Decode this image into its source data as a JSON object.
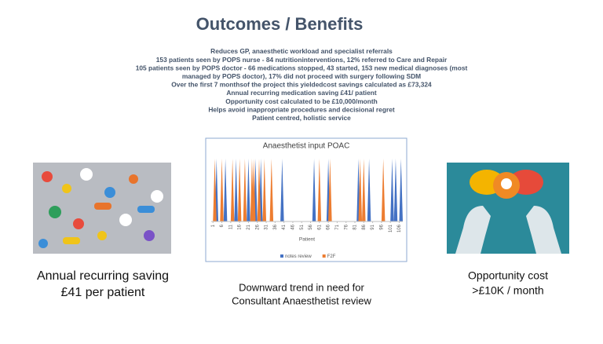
{
  "header": {
    "title": "Outcomes / Benefits"
  },
  "bullets": [
    "Reduces GP, anaesthetic workload and specialist referrals",
    "153 patients seen by POPS nurse - 84 nutritioninterventions, 12% referred to Care and Repair",
    "105 patients seen by POPS doctor - 66 medications stopped, 43 started, 153 new medical diagnoses (most",
    "managed by POPS doctor), 17% did not proceed with surgery following SDM",
    "Over the first 7 monthsof the project this yieldedcost savings calculated as £73,324",
    "Annual recurring medication saving £41/ patient",
    "Opportunity cost calculated to be £10,000/month",
    "Helps avoid inappropriate procedures and decisional regret",
    "Patient centred, holistic service"
  ],
  "captions": {
    "left": [
      "Annual recurring saving",
      "£41 per patient"
    ],
    "center": [
      "Downward trend in need for",
      "Consultant Anaesthetist review"
    ],
    "right": [
      "Opportunity cost",
      ">£10K / month"
    ]
  },
  "chart_data": {
    "type": "spike",
    "title": "Anaesthetist input POAC",
    "x_label": "Patient",
    "xlim": [
      0,
      108
    ],
    "ylim": [
      0,
      1
    ],
    "xticks": [
      1,
      6,
      11,
      16,
      21,
      26,
      31,
      36,
      41,
      46,
      51,
      56,
      61,
      66,
      71,
      76,
      81,
      86,
      91,
      96,
      101,
      106
    ],
    "series": [
      {
        "name": "notes review",
        "color": "#4472c4",
        "x": [
          3,
          8,
          14,
          21,
          25,
          28,
          40,
          58,
          66,
          83,
          89,
          102,
          104,
          107
        ],
        "values": [
          1,
          1,
          1,
          1,
          1,
          1,
          1,
          1,
          1,
          1,
          1,
          1,
          1,
          1
        ]
      },
      {
        "name": "F2F",
        "color": "#ed7d31",
        "x": [
          2,
          6,
          12,
          16,
          19,
          23,
          24,
          27,
          30,
          34,
          61,
          67,
          84,
          86,
          97
        ],
        "values": [
          1,
          1,
          1,
          1,
          1,
          1,
          1,
          1,
          1,
          1,
          1,
          1,
          1,
          1,
          1
        ]
      }
    ]
  }
}
